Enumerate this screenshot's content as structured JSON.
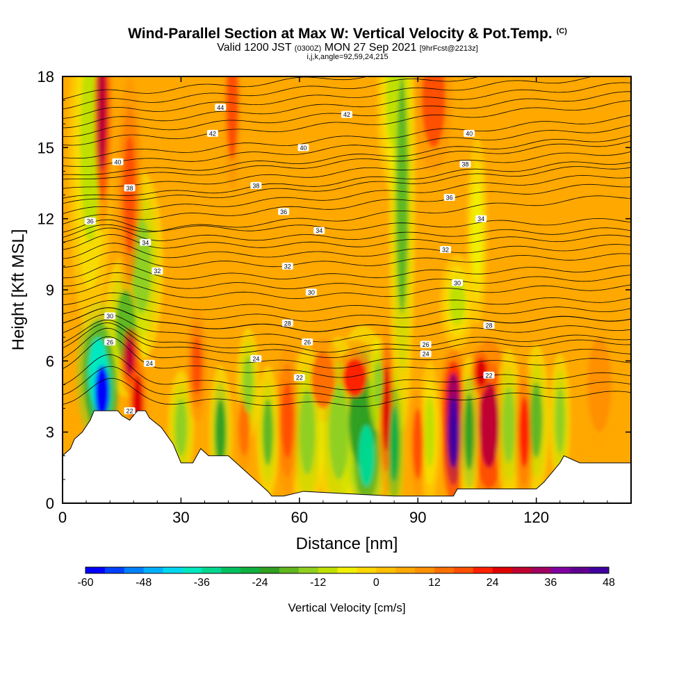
{
  "header": {
    "title": "Wind-Parallel Section at Max W: Vertical Velocity & Pot.Temp.",
    "copyright": "(C)",
    "valid_prefix": "Valid 1200 JST",
    "valid_utc": "(0300Z)",
    "valid_date": "MON 27 Sep 2021",
    "forecast": "[9hrFcst@2213z]",
    "params": "i,j,k,angle=92,59,24,215"
  },
  "chart_data": {
    "type": "heatmap",
    "xlabel": "Distance [nm]",
    "ylabel": "Height [Kft MSL]",
    "xlim": [
      0,
      144
    ],
    "ylim": [
      0,
      18
    ],
    "x_ticks": [
      0,
      30,
      60,
      90,
      120
    ],
    "y_ticks": [
      0,
      3,
      6,
      9,
      12,
      15,
      18
    ],
    "colorbar": {
      "title": "Vertical Velocity [cm/s]",
      "min": -60,
      "max": 48,
      "step": 4,
      "tick_labels": [
        "-60",
        "-48",
        "-36",
        "-24",
        "-12",
        "0",
        "12",
        "24",
        "36",
        "48"
      ],
      "colors": [
        "#0000ff",
        "#0040ff",
        "#0080ff",
        "#00b0ff",
        "#00d8f0",
        "#00e8c0",
        "#00d890",
        "#00c060",
        "#10b040",
        "#30a020",
        "#60b820",
        "#90d020",
        "#c0e000",
        "#f0f000",
        "#ffd800",
        "#ffc000",
        "#ffa800",
        "#ff9000",
        "#ff7000",
        "#ff5000",
        "#ff2000",
        "#e00000",
        "#c00030",
        "#a00060",
        "#8000a0",
        "#600090",
        "#4000a0"
      ]
    },
    "vertical_velocity_cells": [
      {
        "x": 10,
        "z": 4.7,
        "w": -60,
        "sx": 1.8,
        "sz": 1.1
      },
      {
        "x": 9,
        "z": 5.5,
        "w": -40,
        "sx": 2.5,
        "sz": 1.5
      },
      {
        "x": 19,
        "z": 4.2,
        "w": 24,
        "sx": 1.2,
        "sz": 1.2
      },
      {
        "x": 17,
        "z": 6.2,
        "w": 28,
        "sx": 1.2,
        "sz": 0.8
      },
      {
        "x": 10,
        "z": 16.5,
        "w": 28,
        "sx": 1.2,
        "sz": 2.5
      },
      {
        "x": 17,
        "z": 13,
        "w": 16,
        "sx": 1.5,
        "sz": 2.5
      },
      {
        "x": 7,
        "z": 15,
        "w": -12,
        "sx": 2.5,
        "sz": 4
      },
      {
        "x": 20,
        "z": 10,
        "w": -16,
        "sx": 2.5,
        "sz": 2
      },
      {
        "x": 16,
        "z": 7.5,
        "w": -20,
        "sx": 2.5,
        "sz": 1.5
      },
      {
        "x": 30,
        "z": 3.2,
        "w": -18,
        "sx": 1.5,
        "sz": 1.2
      },
      {
        "x": 34,
        "z": 5.8,
        "w": 16,
        "sx": 1.2,
        "sz": 1.2
      },
      {
        "x": 40,
        "z": 3,
        "w": -24,
        "sx": 1.3,
        "sz": 1.4
      },
      {
        "x": 43,
        "z": 17,
        "w": 14,
        "sx": 1.5,
        "sz": 2.5
      },
      {
        "x": 46,
        "z": 3.2,
        "w": 12,
        "sx": 1.3,
        "sz": 1.2
      },
      {
        "x": 47,
        "z": 5,
        "w": -18,
        "sx": 1.3,
        "sz": 1.2
      },
      {
        "x": 52,
        "z": 3,
        "w": -20,
        "sx": 1.3,
        "sz": 1.4
      },
      {
        "x": 57,
        "z": 3.5,
        "w": 16,
        "sx": 1.5,
        "sz": 1.6
      },
      {
        "x": 62,
        "z": 3,
        "w": -16,
        "sx": 2,
        "sz": 1.8
      },
      {
        "x": 66,
        "z": 5.2,
        "w": 10,
        "sx": 3,
        "sz": 1.2
      },
      {
        "x": 70,
        "z": 3,
        "w": -16,
        "sx": 2.5,
        "sz": 2
      },
      {
        "x": 74,
        "z": 5.3,
        "w": 18,
        "sx": 3,
        "sz": 0.8
      },
      {
        "x": 77,
        "z": 2,
        "w": -36,
        "sx": 2,
        "sz": 1.3
      },
      {
        "x": 76,
        "z": 3.5,
        "w": -24,
        "sx": 3.5,
        "sz": 2
      },
      {
        "x": 82,
        "z": 4,
        "w": 24,
        "sx": 1,
        "sz": 1.8
      },
      {
        "x": 84,
        "z": 2.5,
        "w": -28,
        "sx": 1.2,
        "sz": 1.6
      },
      {
        "x": 80,
        "z": 5,
        "w": -16,
        "sx": 1.2,
        "sz": 1
      },
      {
        "x": 86,
        "z": 13,
        "w": -20,
        "sx": 1.5,
        "sz": 5
      },
      {
        "x": 84,
        "z": 17,
        "w": -14,
        "sx": 2,
        "sz": 2
      },
      {
        "x": 94,
        "z": 17,
        "w": 14,
        "sx": 3,
        "sz": 2
      },
      {
        "x": 90,
        "z": 2.5,
        "w": 14,
        "sx": 1.3,
        "sz": 1.5
      },
      {
        "x": 93,
        "z": 3,
        "w": -14,
        "sx": 1.2,
        "sz": 1.5
      },
      {
        "x": 99,
        "z": 3,
        "w": 48,
        "sx": 1.3,
        "sz": 1.5
      },
      {
        "x": 99,
        "z": 4.5,
        "w": 30,
        "sx": 1.5,
        "sz": 1
      },
      {
        "x": 103,
        "z": 3,
        "w": -24,
        "sx": 1.2,
        "sz": 1.6
      },
      {
        "x": 108,
        "z": 3.3,
        "w": 28,
        "sx": 2.5,
        "sz": 1.8
      },
      {
        "x": 106,
        "z": 5.5,
        "w": 24,
        "sx": 1.5,
        "sz": 0.6
      },
      {
        "x": 113,
        "z": 3.3,
        "w": -18,
        "sx": 1.5,
        "sz": 1.6
      },
      {
        "x": 117,
        "z": 3,
        "w": 18,
        "sx": 1.3,
        "sz": 1.5
      },
      {
        "x": 120,
        "z": 3.5,
        "w": -20,
        "sx": 1.5,
        "sz": 1.6
      },
      {
        "x": 126,
        "z": 3.5,
        "w": -18,
        "sx": 1.2,
        "sz": 1.4
      },
      {
        "x": 100,
        "z": 8.5,
        "w": -12,
        "sx": 2,
        "sz": 1
      },
      {
        "x": 105,
        "z": 11.5,
        "w": -10,
        "sx": 1.2,
        "sz": 2
      },
      {
        "x": 136,
        "z": 5,
        "w": 8,
        "sx": 3,
        "sz": 2
      }
    ],
    "terrain": [
      [
        0,
        2
      ],
      [
        2,
        2.3
      ],
      [
        3,
        2.7
      ],
      [
        5,
        3
      ],
      [
        7,
        3.5
      ],
      [
        8,
        3.9
      ],
      [
        14,
        3.9
      ],
      [
        15,
        3.7
      ],
      [
        17,
        3.5
      ],
      [
        18,
        3.7
      ],
      [
        19,
        3.9
      ],
      [
        21,
        3.9
      ],
      [
        22,
        3.6
      ],
      [
        25,
        3.2
      ],
      [
        28,
        2.5
      ],
      [
        30,
        1.7
      ],
      [
        33,
        1.7
      ],
      [
        34,
        2
      ],
      [
        35,
        2.3
      ],
      [
        37,
        2
      ],
      [
        42,
        2
      ],
      [
        44,
        1.7
      ],
      [
        46,
        1.4
      ],
      [
        48,
        1.1
      ],
      [
        50,
        0.8
      ],
      [
        52,
        0.5
      ],
      [
        53,
        0.3
      ],
      [
        56,
        0.3
      ],
      [
        61,
        0.5
      ],
      [
        72,
        0.4
      ],
      [
        84,
        0.3
      ],
      [
        99,
        0.3
      ],
      [
        100,
        0.6
      ],
      [
        120,
        0.6
      ],
      [
        122,
        0.9
      ],
      [
        124,
        1.3
      ],
      [
        126,
        1.7
      ],
      [
        127,
        2
      ],
      [
        131,
        1.7
      ],
      [
        144,
        1.7
      ]
    ],
    "potential_temperature_isentropes": [
      {
        "value": 22,
        "z": 4.4,
        "label_x": [
          17,
          60,
          108
        ],
        "label_z": [
          3.9,
          5.3,
          5.4
        ]
      },
      {
        "value": 24,
        "z": 5.8,
        "label_x": [
          22,
          49,
          92
        ],
        "label_z": [
          5.9,
          6.1,
          6.3
        ]
      },
      {
        "value": 26,
        "z": 6.8,
        "label_x": [
          12,
          62,
          92
        ],
        "label_z": [
          6.8,
          6.8,
          6.7
        ]
      },
      {
        "value": 28,
        "z": 7.6,
        "label_x": [
          57,
          108
        ],
        "label_z": [
          7.6,
          7.5
        ]
      },
      {
        "value": 30,
        "z": 8.9,
        "label_x": [
          12,
          63,
          100
        ],
        "label_z": [
          7.9,
          8.9,
          9.3
        ]
      },
      {
        "value": 32,
        "z": 10.2,
        "label_x": [
          24,
          57,
          97
        ],
        "label_z": [
          9.8,
          10.0,
          10.7
        ]
      },
      {
        "value": 34,
        "z": 11.3,
        "label_x": [
          21,
          65,
          106
        ],
        "label_z": [
          11.0,
          11.5,
          12.0
        ]
      },
      {
        "value": 36,
        "z": 12.6,
        "label_x": [
          7,
          56,
          98
        ],
        "label_z": [
          11.9,
          12.3,
          12.9
        ]
      },
      {
        "value": 38,
        "z": 13.6,
        "label_x": [
          17,
          49,
          102
        ],
        "label_z": [
          13.3,
          13.4,
          14.3
        ]
      },
      {
        "value": 40,
        "z": 14.6,
        "label_x": [
          14,
          61,
          103
        ],
        "label_z": [
          14.4,
          15.0,
          15.6
        ]
      },
      {
        "value": 42,
        "z": 16.0,
        "label_x": [
          38,
          72
        ],
        "label_z": [
          15.6,
          16.4
        ]
      },
      {
        "value": 44,
        "z": 17.2,
        "label_x": [
          40
        ],
        "label_z": [
          16.7
        ]
      }
    ]
  }
}
